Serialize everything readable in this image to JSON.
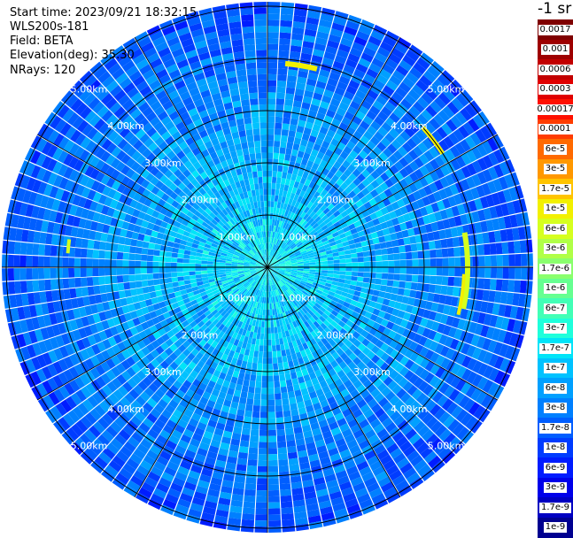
{
  "info": {
    "start_time": "Start time: 2023/09/21 18:32:15",
    "instrument": "WLS200s-181",
    "field": "Field: BETA",
    "elevation": "Elevation(deg): 35.30",
    "nrays": "NRays: 120"
  },
  "colorbar": {
    "unit_label": "-1 sr",
    "labels": [
      "0.0017",
      "0.001",
      "0.0006",
      "0.0003",
      "0.00017",
      "0.0001",
      "6e-5",
      "3e-5",
      "1.7e-5",
      "1e-5",
      "6e-6",
      "3e-6",
      "1.7e-6",
      "1e-6",
      "6e-7",
      "3e-7",
      "1.7e-7",
      "1e-7",
      "6e-8",
      "3e-8",
      "1.7e-8",
      "1e-8",
      "6e-9",
      "3e-9",
      "1.7e-9",
      "1e-9"
    ],
    "colors": [
      "#7f0000",
      "#9e0000",
      "#c20000",
      "#e00000",
      "#ff1000",
      "#ff3c00",
      "#ff6a00",
      "#ff9800",
      "#ffc400",
      "#f2f000",
      "#d6ff1f",
      "#b0ff47",
      "#8aff6d",
      "#66ff91",
      "#42ffb6",
      "#1fffdb",
      "#00e4f8",
      "#00c2ff",
      "#00a0ff",
      "#0080ff",
      "#005eff",
      "#003cff",
      "#001cff",
      "#0000ea",
      "#0000c2",
      "#000090"
    ]
  },
  "range_rings": {
    "labels": [
      "1.00km",
      "2.00km",
      "3.00km",
      "4.00km",
      "5.00km"
    ]
  },
  "field_data": {
    "type": "heatmap",
    "description_values": "polar PPI of backscatter coefficient BETA, 120 rays",
    "rays": 120
  }
}
